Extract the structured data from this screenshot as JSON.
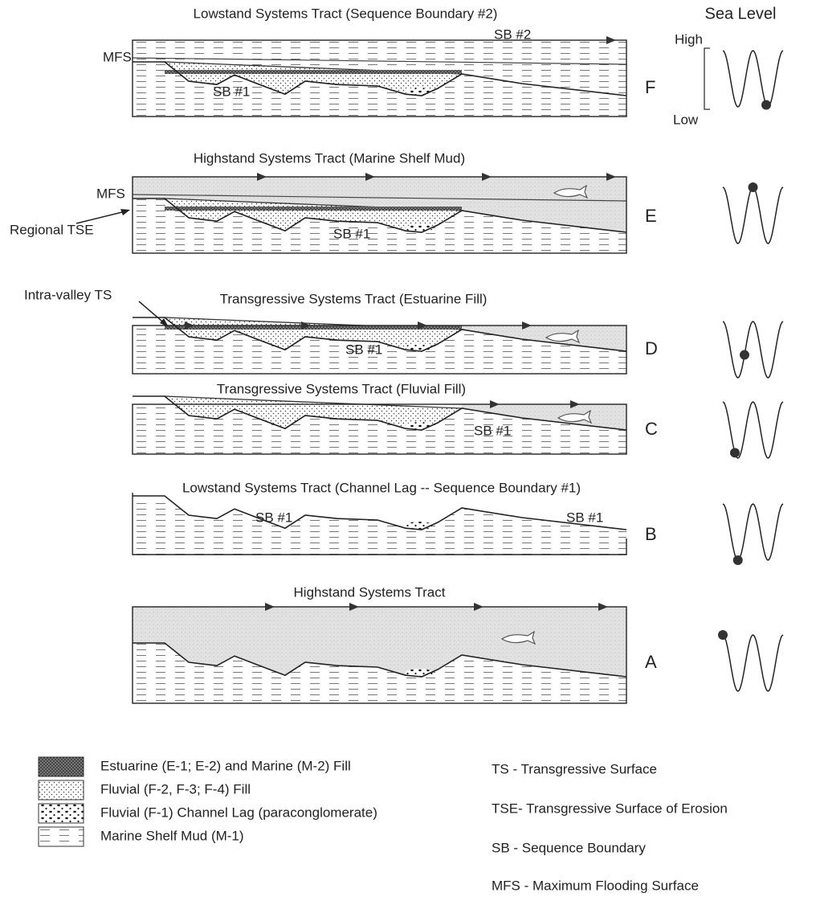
{
  "sea_level": {
    "title": "Sea Level",
    "high": "High",
    "low": "Low"
  },
  "panels": [
    {
      "letter": "F",
      "title": "Lowstand Systems Tract (Sequence Boundary #2)",
      "labels": [
        "MFS",
        "SB #2",
        "SB #1"
      ]
    },
    {
      "letter": "E",
      "title": "Highstand Systems Tract (Marine Shelf Mud)",
      "labels": [
        "MFS",
        "Regional TSE",
        "SB #1"
      ]
    },
    {
      "letter": "D",
      "title": "Transgressive Systems Tract (Estuarine Fill)",
      "labels": [
        "Intra-valley TS",
        "SB #1"
      ]
    },
    {
      "letter": "C",
      "title": "Transgressive Systems Tract (Fluvial Fill)",
      "labels": [
        "SB #1"
      ]
    },
    {
      "letter": "B",
      "title": "Lowstand Systems Tract (Channel Lag -- Sequence Boundary #1)",
      "labels": [
        "SB #1",
        "SB #1"
      ]
    },
    {
      "letter": "A",
      "title": "Highstand Systems Tract",
      "labels": []
    }
  ],
  "legend": {
    "patterns": [
      "Estuarine (E-1; E-2) and Marine (M-2) Fill",
      "Fluvial  (F-2, F-3; F-4) Fill",
      "Fluvial (F-1) Channel Lag (paraconglomerate)",
      "Marine Shelf Mud (M-1)"
    ],
    "abbreviations": [
      "TS - Transgressive Surface",
      "TSE- Transgressive Surface of Erosion",
      "SB - Sequence Boundary",
      "MFS - Maximum Flooding Surface"
    ]
  }
}
